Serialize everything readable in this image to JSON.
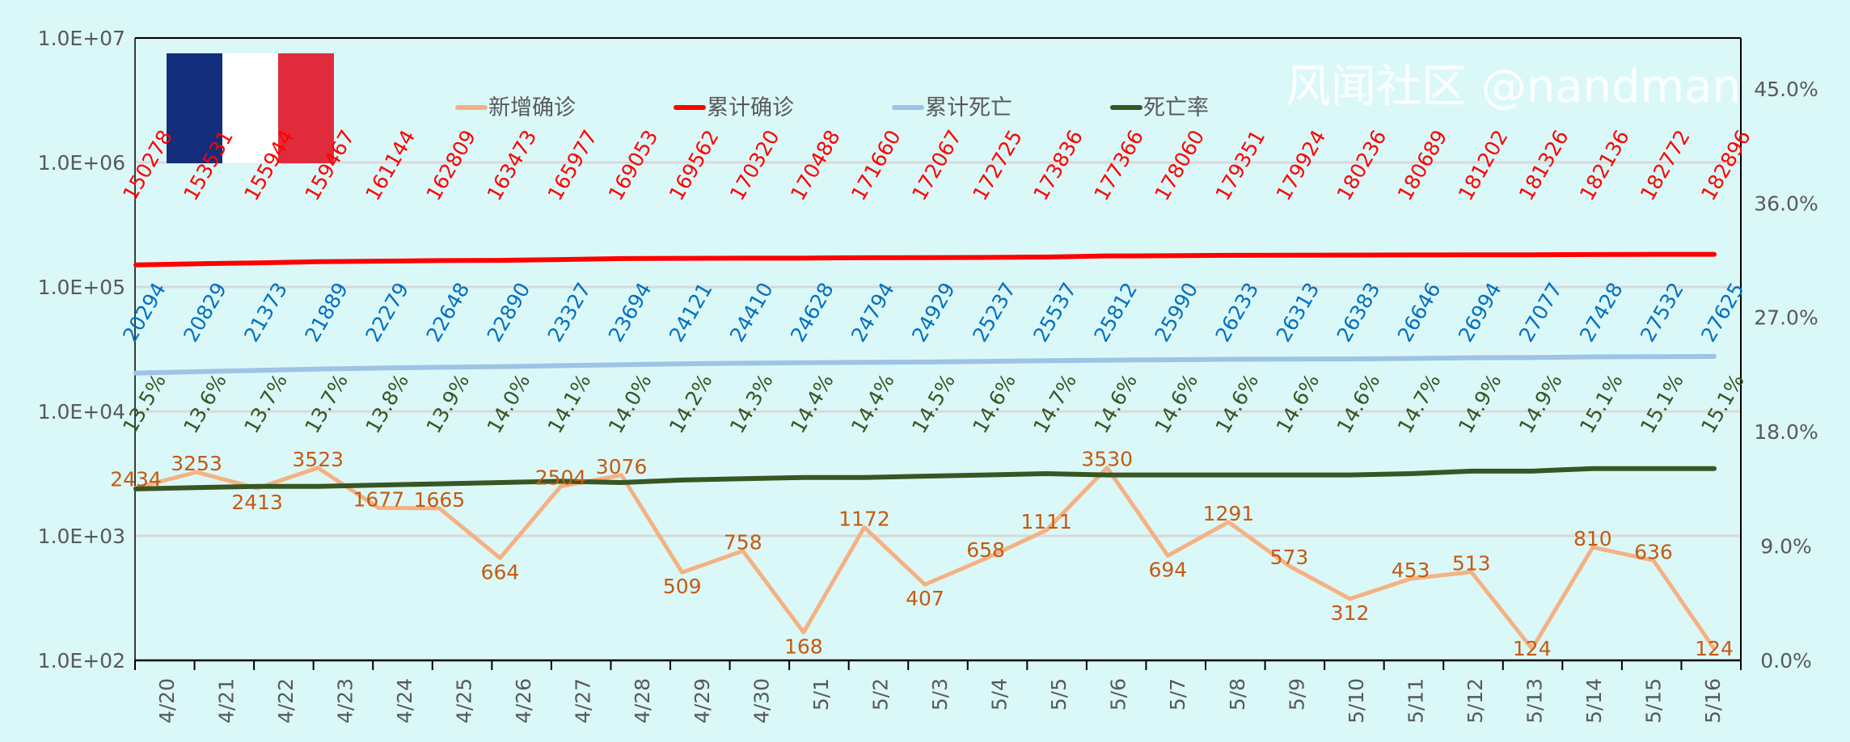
{
  "chart_data": {
    "type": "line",
    "categories": [
      "4/20",
      "4/21",
      "4/22",
      "4/23",
      "4/24",
      "4/25",
      "4/26",
      "4/27",
      "4/28",
      "4/29",
      "4/30",
      "5/1",
      "5/2",
      "5/3",
      "5/4",
      "5/5",
      "5/6",
      "5/7",
      "5/8",
      "5/9",
      "5/10",
      "5/11",
      "5/12",
      "5/13",
      "5/14",
      "5/15",
      "5/16"
    ],
    "y_left": {
      "scale": "log",
      "range": [
        100,
        10000000
      ],
      "ticks": [
        "1.0E+02",
        "1.0E+03",
        "1.0E+04",
        "1.0E+05",
        "1.0E+06",
        "1.0E+07"
      ]
    },
    "y_right": {
      "scale": "linear",
      "range": [
        0,
        49
      ],
      "ticks": [
        "0.0%",
        "9.0%",
        "18.0%",
        "27.0%",
        "36.0%",
        "45.0%"
      ]
    },
    "grid": true,
    "legend_position": "top",
    "series": [
      {
        "name": "新增确诊",
        "axis": "left",
        "color": "#F4B183",
        "label_color": "#C55A11",
        "values": [
          2434,
          3253,
          2413,
          3523,
          1677,
          1665,
          664,
          2504,
          3076,
          509,
          758,
          168,
          1172,
          407,
          658,
          1111,
          3530,
          694,
          1291,
          573,
          312,
          453,
          513,
          124,
          810,
          636,
          124
        ]
      },
      {
        "name": "累计确诊",
        "axis": "left",
        "color": "#FF0000",
        "label_color": "#FF0000",
        "values": [
          150278,
          153531,
          155944,
          159467,
          161144,
          162809,
          163473,
          165977,
          169053,
          169562,
          170320,
          170488,
          171660,
          172067,
          172725,
          173836,
          177366,
          178060,
          179351,
          179924,
          180236,
          180689,
          181202,
          181326,
          182136,
          182772,
          182896
        ]
      },
      {
        "name": "累计死亡",
        "axis": "left",
        "color": "#9DC3E6",
        "label_color": "#0070C0",
        "values": [
          20294,
          20829,
          21373,
          21889,
          22279,
          22648,
          22890,
          23327,
          23694,
          24121,
          24410,
          24628,
          24794,
          24929,
          25237,
          25537,
          25812,
          25990,
          26233,
          26313,
          26383,
          26646,
          26994,
          27077,
          27428,
          27532,
          27625
        ]
      },
      {
        "name": "死亡率",
        "axis": "right",
        "color": "#375623",
        "label_color": "#375623",
        "values": [
          13.5,
          13.6,
          13.7,
          13.7,
          13.8,
          13.9,
          14.0,
          14.1,
          14.0,
          14.2,
          14.3,
          14.4,
          14.4,
          14.5,
          14.6,
          14.7,
          14.6,
          14.6,
          14.6,
          14.6,
          14.6,
          14.7,
          14.9,
          14.9,
          15.1,
          15.1,
          15.1
        ],
        "labels": [
          "13.5%",
          "13.6%",
          "13.7%",
          "13.7%",
          "13.8%",
          "13.9%",
          "14.0%",
          "14.1%",
          "14.0%",
          "14.2%",
          "14.3%",
          "14.4%",
          "14.4%",
          "14.5%",
          "14.6%",
          "14.7%",
          "14.6%",
          "14.6%",
          "14.6%",
          "14.6%",
          "14.6%",
          "14.7%",
          "14.9%",
          "14.9%",
          "15.1%",
          "15.1%",
          "15.1%"
        ]
      }
    ],
    "flag": {
      "colors": [
        "#122E7C",
        "#FFFFFF",
        "#E02B3C"
      ]
    }
  },
  "watermark": "风闻社区 @nandman"
}
